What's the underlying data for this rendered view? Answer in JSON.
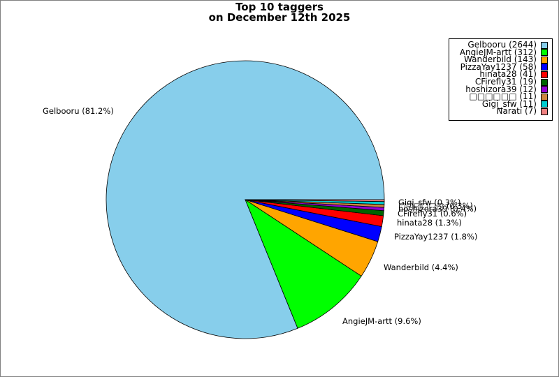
{
  "chart_data": {
    "type": "pie",
    "title_lines": [
      "Top 10 taggers",
      "on December 12th 2025"
    ],
    "series": [
      {
        "name": "Gelbooru",
        "value": 2644,
        "percent_label": "Gelbooru (81.2%)",
        "legend": "Gelbooru (2644)",
        "color": "#87ceeb"
      },
      {
        "name": "AngieJM-artt",
        "value": 312,
        "percent_label": "AngieJM-artt (9.6%)",
        "legend": "AngieJM-artt (312)",
        "color": "#00ff00"
      },
      {
        "name": "Wanderbild",
        "value": 143,
        "percent_label": "Wanderbild (4.4%)",
        "legend": "Wanderbild (143)",
        "color": "#ffa500"
      },
      {
        "name": "PizzaYay1237",
        "value": 58,
        "percent_label": "PizzaYay1237 (1.8%)",
        "legend": "PizzaYay1237 (58)",
        "color": "#0000ff"
      },
      {
        "name": "hinata28",
        "value": 41,
        "percent_label": "hinata28 (1.3%)",
        "legend": "hinata28 (41)",
        "color": "#ff0000"
      },
      {
        "name": "CFirefly31",
        "value": 19,
        "percent_label": "CFirefly31 (0.6%)",
        "legend": "CFirefly31 (19)",
        "color": "#006400"
      },
      {
        "name": "hoshizora39",
        "value": 12,
        "percent_label": "hoshizora39 (0.4%)",
        "legend": "hoshizora39 (12)",
        "color": "#9400d3"
      },
      {
        "name": "□□□□□□",
        "value": 11,
        "percent_label": "□□□□□□ (0.3%)",
        "legend": "□□□□□□ (11)",
        "color": "#cd853f"
      },
      {
        "name": "Gigi_sfw",
        "value": 11,
        "percent_label": "Gigi_sfw (0.3%)",
        "legend": "Gigi_sfw (11)",
        "color": "#00ced1"
      },
      {
        "name": "Narati",
        "value": 7,
        "percent_label": "",
        "legend": "Narati (7)",
        "color": "#f08080"
      }
    ],
    "legend_position": "top-right"
  }
}
